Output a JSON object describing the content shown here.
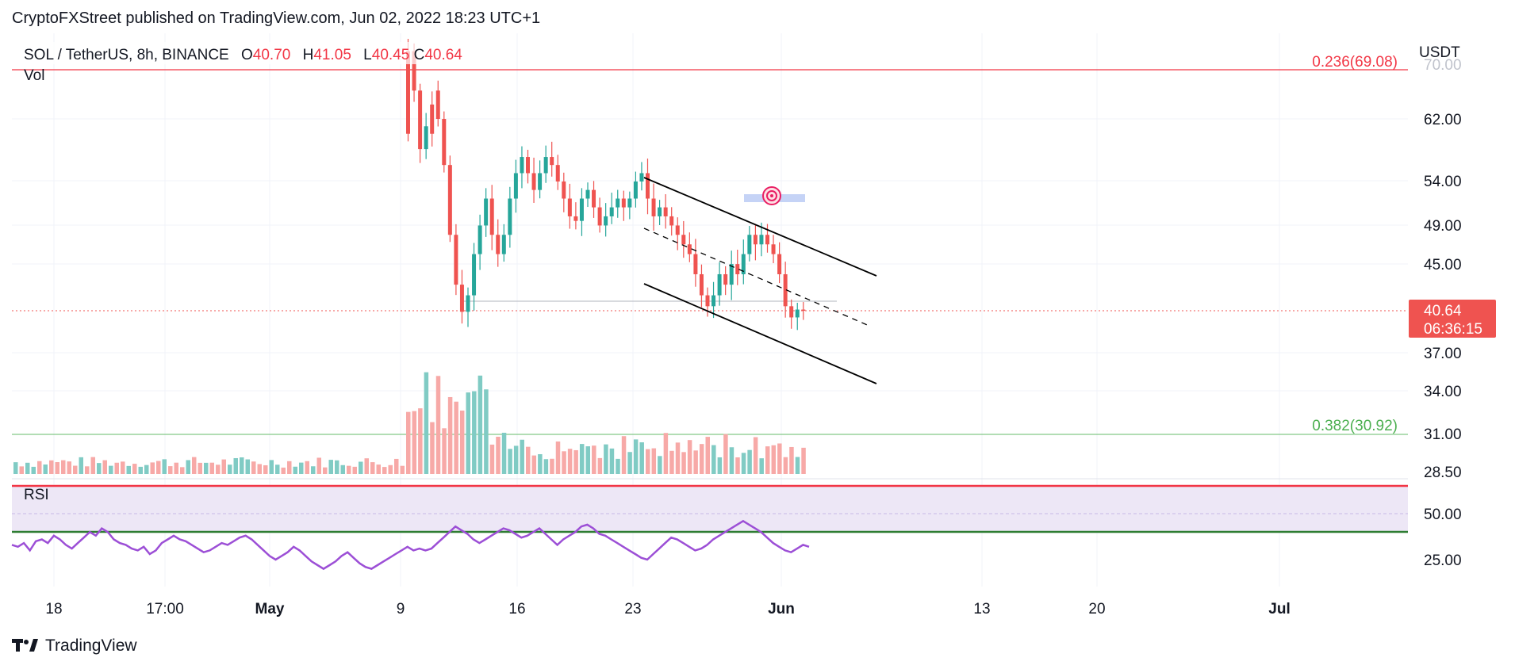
{
  "header": {
    "publisher_line": "CryptoFXStreet published on TradingView.com, Jun 02, 2022 18:23 UTC+1"
  },
  "symbol": {
    "label": "SOL / TetherUS, 8h, BINANCE",
    "o_key": "O",
    "o_val": "40.70",
    "h_key": "H",
    "h_val": "41.05",
    "l_key": "L",
    "l_val": "40.45",
    "c_key": "C",
    "c_val": "40.64",
    "vol_label": "Vol"
  },
  "axis": {
    "currency": "USDT",
    "price_ticks": [
      "62.00",
      "54.00",
      "49.00",
      "45.00",
      "37.00",
      "34.00",
      "31.00",
      "28.50"
    ],
    "rsi_ticks": [
      "50.00",
      "25.00"
    ],
    "date_ticks": [
      "18",
      "17:00",
      "May",
      "9",
      "16",
      "23",
      "Jun",
      "13",
      "20",
      "Jul"
    ]
  },
  "last_price": {
    "value": "40.64",
    "countdown": "06:36:15"
  },
  "fib": [
    {
      "label": "0.236(69.08)",
      "level": 69.08,
      "color": "#f23645"
    },
    {
      "label": "0.382(30.92)",
      "level": 30.92,
      "color": "#4caf50"
    }
  ],
  "rsi": {
    "label": "RSI",
    "upper_band": 70,
    "lower_band": 30,
    "mid_level": 50
  },
  "brand": {
    "name": "TradingView"
  },
  "colors": {
    "up": "#26a69a",
    "down": "#ef5350",
    "up_vol": "#80cbc4",
    "down_vol": "#f7a9a7",
    "rsi_line": "#9c4fd6",
    "rsi_band": "#ede7f6"
  },
  "chart_data": {
    "type": "candlestick",
    "symbol": "SOL / TetherUS",
    "interval": "8h",
    "exchange": "BINANCE",
    "ohlc_last": {
      "open": 40.7,
      "high": 41.05,
      "low": 40.45,
      "close": 40.64
    },
    "last_price": 40.64,
    "price_range": [
      28.5,
      72
    ],
    "price_scale": "log",
    "price_path": [
      [
        0,
        72,
        60
      ],
      [
        1,
        72,
        66
      ],
      [
        2,
        66,
        58
      ],
      [
        3,
        58,
        61
      ],
      [
        4,
        64,
        60
      ],
      [
        5,
        66,
        62
      ],
      [
        6,
        62,
        56
      ],
      [
        7,
        56,
        48
      ],
      [
        8,
        48,
        43
      ],
      [
        9,
        43,
        40.5
      ],
      [
        10,
        40.5,
        42
      ],
      [
        11,
        42,
        46
      ],
      [
        12,
        46,
        49
      ],
      [
        13,
        49,
        52
      ],
      [
        14,
        52,
        48
      ],
      [
        15,
        48,
        46
      ],
      [
        16,
        46,
        48
      ],
      [
        17,
        48,
        52
      ],
      [
        18,
        52,
        55
      ],
      [
        19,
        55,
        57
      ],
      [
        20,
        57,
        55
      ],
      [
        21,
        55,
        53
      ],
      [
        22,
        53,
        55
      ],
      [
        23,
        55,
        57
      ],
      [
        24,
        57,
        56
      ],
      [
        25,
        56,
        54
      ],
      [
        26,
        54,
        52
      ],
      [
        27,
        52,
        50
      ],
      [
        28,
        50,
        49.5
      ],
      [
        29,
        49.5,
        52
      ],
      [
        30,
        52,
        53
      ],
      [
        31,
        53,
        51
      ],
      [
        32,
        51,
        49
      ],
      [
        33,
        49,
        50
      ],
      [
        34,
        50,
        51
      ],
      [
        35,
        51,
        52
      ],
      [
        36,
        52,
        51
      ],
      [
        37,
        51,
        52
      ],
      [
        38,
        52,
        54
      ],
      [
        39,
        54,
        55
      ],
      [
        40,
        55,
        52
      ],
      [
        41,
        52,
        50
      ],
      [
        42,
        50,
        51
      ],
      [
        43,
        51,
        50
      ],
      [
        44,
        50,
        49
      ],
      [
        45,
        49,
        48
      ],
      [
        46,
        48,
        47
      ],
      [
        47,
        47,
        46
      ],
      [
        48,
        46,
        44
      ],
      [
        49,
        44,
        42
      ],
      [
        50,
        42,
        41
      ],
      [
        51,
        41,
        42
      ],
      [
        52,
        42,
        44
      ],
      [
        53,
        44,
        43
      ],
      [
        54,
        43,
        45
      ],
      [
        55,
        45,
        44
      ],
      [
        56,
        44,
        46
      ],
      [
        57,
        46,
        48
      ],
      [
        58,
        48,
        47
      ],
      [
        59,
        47,
        48
      ],
      [
        60,
        48,
        47
      ],
      [
        61,
        47,
        46
      ],
      [
        62,
        46,
        44
      ],
      [
        63,
        44,
        41
      ],
      [
        64,
        41,
        40
      ],
      [
        65,
        40,
        40.7
      ],
      [
        66,
        40.7,
        40.64
      ]
    ],
    "channel": {
      "upper": [
        [
          54.5,
          23.5
        ],
        [
          45.5,
          31.5
        ]
      ],
      "mid": [
        [
          49,
          23.5
        ],
        [
          41,
          30.8
        ]
      ],
      "lower": [
        [
          44,
          23.5
        ],
        [
          36,
          31.5
        ]
      ]
    },
    "fib_levels": [
      {
        "ratio": 0.236,
        "price": 69.08
      },
      {
        "ratio": 0.382,
        "price": 30.92
      }
    ],
    "rsi_values": [
      33,
      32,
      34,
      30,
      35,
      36,
      34,
      38,
      36,
      33,
      31,
      34,
      37,
      40,
      38,
      42,
      40,
      36,
      34,
      33,
      31,
      30,
      32,
      28,
      30,
      34,
      36,
      38,
      36,
      35,
      33,
      31,
      29,
      30,
      32,
      34,
      33,
      35,
      37,
      38,
      36,
      33,
      30,
      27,
      25,
      27,
      29,
      32,
      30,
      27,
      24,
      22,
      20,
      22,
      24,
      27,
      29,
      26,
      23,
      21,
      20,
      22,
      24,
      26,
      28,
      30,
      32,
      30,
      31,
      30,
      31,
      34,
      37,
      40,
      43,
      41,
      39,
      36,
      34,
      36,
      38,
      40,
      42,
      41,
      39,
      37,
      38,
      40,
      42,
      39,
      36,
      33,
      36,
      38,
      40,
      43,
      44,
      42,
      39,
      38,
      36,
      34,
      32,
      30,
      28,
      26,
      25,
      28,
      31,
      34,
      37,
      36,
      34,
      32,
      30,
      31,
      33,
      36,
      38,
      40,
      42,
      44,
      46,
      44,
      42,
      40,
      37,
      34,
      32,
      30,
      29,
      31,
      33,
      32
    ],
    "date_ticks": [
      "18",
      "17:00",
      "May",
      "9",
      "16",
      "23",
      "Jun",
      "13",
      "20",
      "Jul"
    ]
  }
}
